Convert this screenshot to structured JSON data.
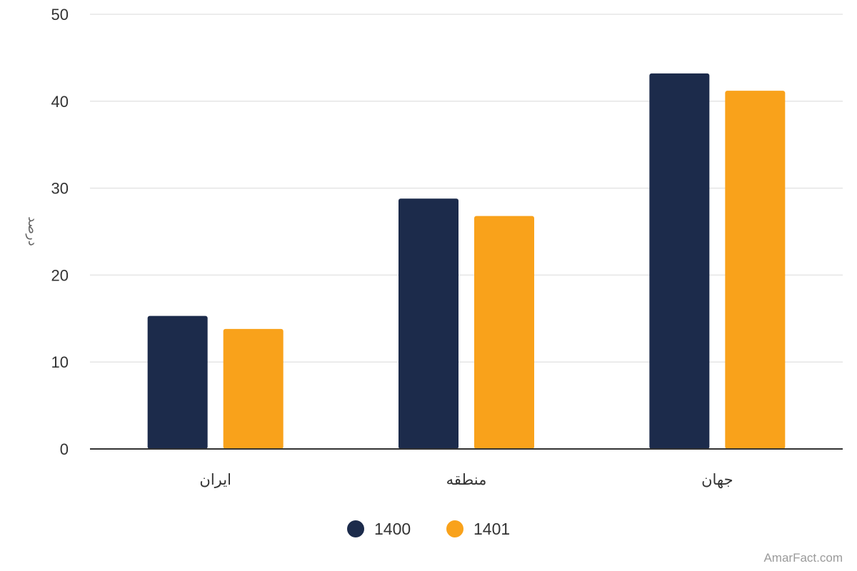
{
  "chart_data": {
    "type": "bar",
    "categories": [
      "ایران",
      "منطقه",
      "جهان"
    ],
    "series": [
      {
        "name": "1400",
        "values": [
          15.3,
          28.8,
          43.2
        ],
        "color": "#1c2b4b"
      },
      {
        "name": "1401",
        "values": [
          13.8,
          26.8,
          41.2
        ],
        "color": "#f9a21b"
      }
    ],
    "ylabel": "درصد",
    "ylim": [
      0,
      50
    ],
    "yticks": [
      0,
      10,
      20,
      30,
      40,
      50
    ],
    "grid": true,
    "legend_position": "bottom-center"
  },
  "credit": "AmarFact.com",
  "colors": {
    "gridline": "#e5e5e5",
    "axis": "#333333",
    "tick_label": "#333333",
    "ylabel": "#666666"
  }
}
